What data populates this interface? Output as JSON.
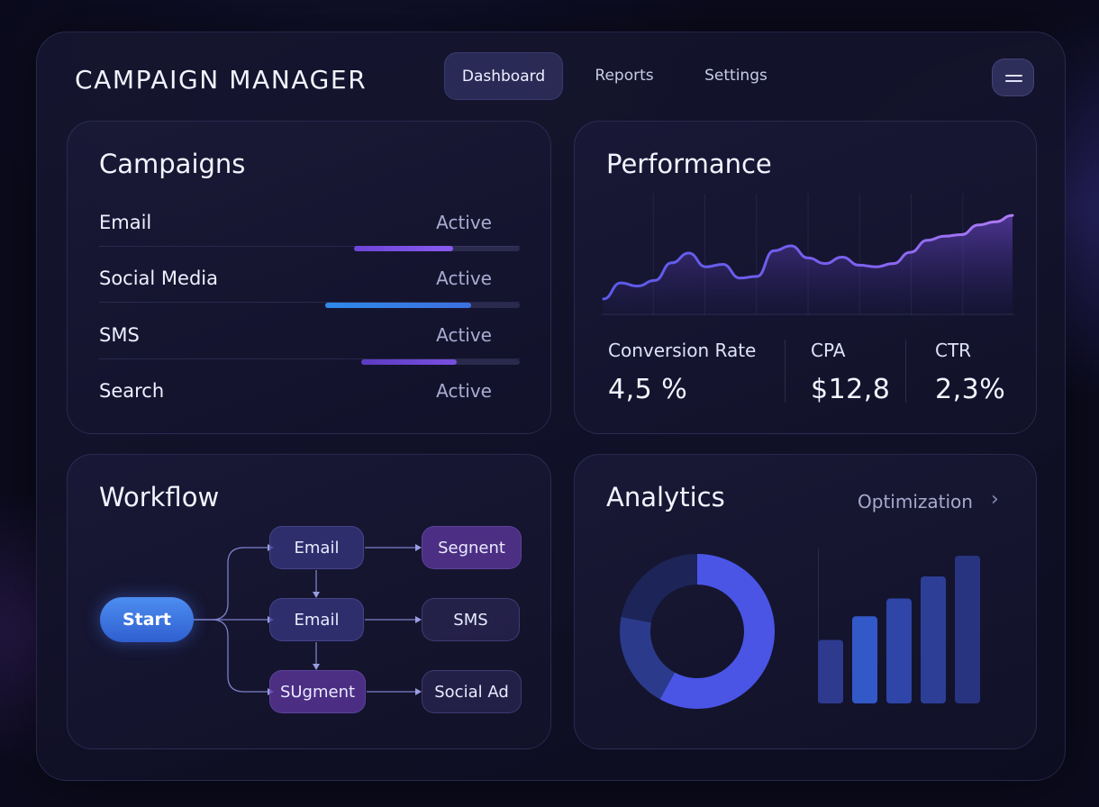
{
  "header": {
    "title": "CAMPAIGN MANAGER",
    "tabs": [
      {
        "label": "Dashboard",
        "active": true
      },
      {
        "label": "Reports",
        "active": false
      },
      {
        "label": "Settings",
        "active": false
      }
    ],
    "menu_icon": "hamburger-icon"
  },
  "campaigns": {
    "title": "Campaigns",
    "items": [
      {
        "name": "Email",
        "status": "Active",
        "progress": 0.6
      },
      {
        "name": "Social Media",
        "status": "Active",
        "progress": 0.75
      },
      {
        "name": "SMS",
        "status": "Active",
        "progress": 0.6
      },
      {
        "name": "Search",
        "status": "Active",
        "progress": null
      }
    ]
  },
  "performance": {
    "title": "Performance",
    "metrics": [
      {
        "label": "Conversion Rate",
        "value": "4,5 %"
      },
      {
        "label": "CPA",
        "value": "$12,8"
      },
      {
        "label": "CTR",
        "value": "2,3%"
      }
    ]
  },
  "chart_data": {
    "type": "area",
    "title": "Performance",
    "xlabel": "",
    "ylabel": "",
    "x": [
      0,
      1,
      2,
      3,
      4,
      5,
      6,
      7,
      8,
      9,
      10,
      11,
      12,
      13,
      14,
      15,
      16,
      17,
      18,
      19,
      20,
      21,
      22,
      23,
      24
    ],
    "series": [
      {
        "values": [
          18,
          38,
          34,
          41,
          63,
          75,
          58,
          61,
          44,
          46,
          78,
          84,
          69,
          62,
          70,
          60,
          58,
          62,
          76,
          91,
          96,
          98,
          110,
          114,
          122
        ]
      }
    ],
    "grid": true,
    "ylim": [
      0,
      140
    ]
  },
  "workflow": {
    "title": "Workflow",
    "start_label": "Start",
    "nodes": [
      {
        "label": "Email"
      },
      {
        "label": "Segnent"
      },
      {
        "label": "Email"
      },
      {
        "label": "SMS"
      },
      {
        "label": "SUgment"
      },
      {
        "label": "Social Ad"
      }
    ]
  },
  "analytics": {
    "title": "Analytics",
    "link_label": "Optimization",
    "donut": {
      "primary_share": 0.58,
      "colors": [
        "#4a55e6",
        "#2b3a8a",
        "#1d2458"
      ]
    },
    "bars": [
      0.43,
      0.59,
      0.71,
      0.86,
      1.0
    ]
  },
  "colors": {
    "accent_blue": "#3f82ea",
    "accent_purple": "#7a56e0",
    "background": "#0b0b1d"
  }
}
